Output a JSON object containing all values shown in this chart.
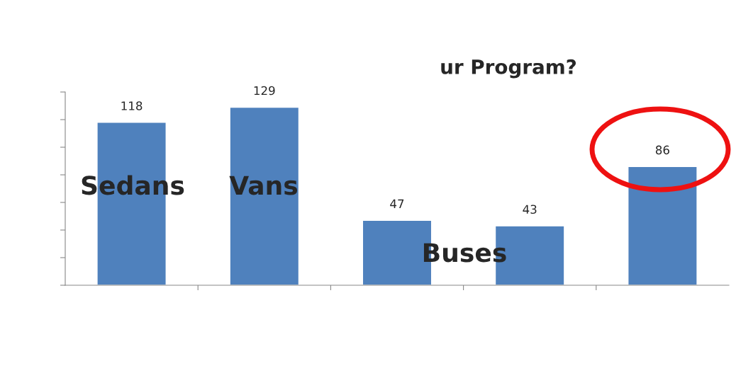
{
  "chart_data": {
    "type": "bar",
    "title": "ur Program?",
    "categories": [
      null,
      null,
      null,
      null,
      null
    ],
    "values": [
      118,
      129,
      47,
      43,
      86
    ],
    "color": "#4f81bd",
    "ylim": [
      0,
      140
    ],
    "yticks": [
      {
        "value": 0,
        "label": null
      },
      {
        "value": 20,
        "label": null
      },
      {
        "value": 40,
        "label": null
      },
      {
        "value": 60,
        "label": null
      },
      {
        "value": 80,
        "label": null
      },
      {
        "value": 100,
        "label": null
      },
      {
        "value": 120,
        "label": null
      },
      {
        "value": 140,
        "label": null
      }
    ],
    "data_labels": true,
    "grid": false,
    "annotations": [
      "Sedans",
      "Vans",
      "Buses"
    ]
  }
}
